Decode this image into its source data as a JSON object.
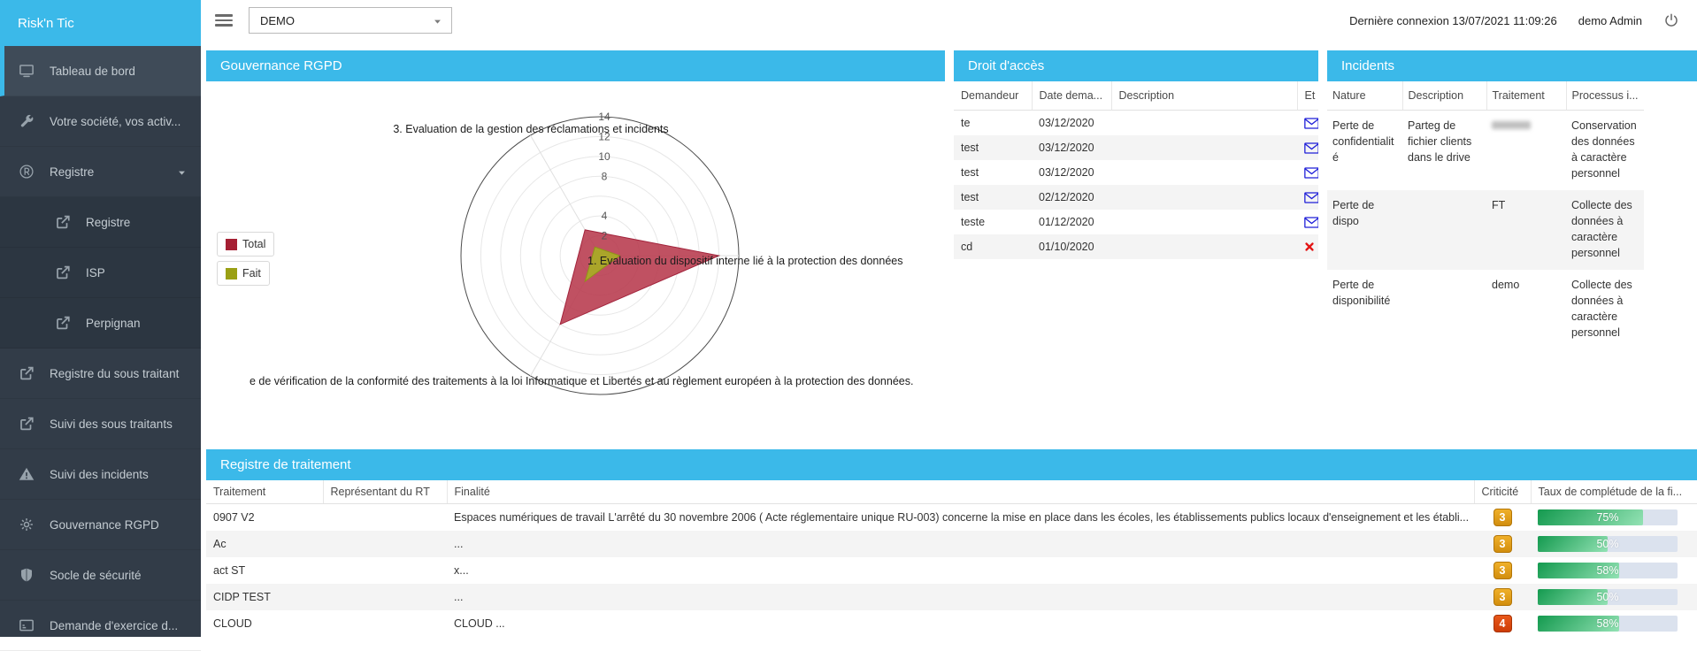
{
  "app": {
    "brand": "Risk'n Tic"
  },
  "topbar": {
    "org_select_value": "DEMO",
    "last_login": "Dernière connexion 13/07/2021 11:09:26",
    "user": "demo Admin"
  },
  "sidebar": {
    "items": [
      {
        "label": "Tableau de bord",
        "icon": "monitor",
        "active": true
      },
      {
        "label": "Votre société, vos activ...",
        "icon": "wrench"
      },
      {
        "label": "Registre",
        "icon": "registered",
        "expandable": true
      },
      {
        "label": "Registre",
        "icon": "external-link",
        "submenu": true
      },
      {
        "label": "ISP",
        "icon": "external-link",
        "submenu": true
      },
      {
        "label": "Perpignan",
        "icon": "external-link",
        "submenu": true
      },
      {
        "label": "Registre du sous traitant",
        "icon": "external-link"
      },
      {
        "label": "Suivi des sous traitants",
        "icon": "external-link"
      },
      {
        "label": "Suivi des incidents",
        "icon": "warning"
      },
      {
        "label": "Gouvernance RGPD",
        "icon": "gear"
      },
      {
        "label": "Socle de sécurité",
        "icon": "shield"
      },
      {
        "label": "Demande d'exercice d...",
        "icon": "card"
      }
    ]
  },
  "panels": {
    "gouvernance": {
      "title": "Gouvernance RGPD"
    },
    "droit_acces": {
      "title": "Droit d'accès",
      "columns": [
        "Demandeur",
        "Date dema...",
        "Description",
        "Et"
      ],
      "rows": [
        {
          "demandeur": "te",
          "date": "03/12/2020",
          "description": "",
          "etat": "mail"
        },
        {
          "demandeur": "test",
          "date": "03/12/2020",
          "description": "",
          "etat": "mail"
        },
        {
          "demandeur": "test",
          "date": "03/12/2020",
          "description": "",
          "etat": "mail"
        },
        {
          "demandeur": "test",
          "date": "02/12/2020",
          "description": "",
          "etat": "mail"
        },
        {
          "demandeur": "teste",
          "date": "01/12/2020",
          "description": "",
          "etat": "mail"
        },
        {
          "demandeur": "cd",
          "date": "01/10/2020",
          "description": "",
          "etat": "rejected"
        }
      ]
    },
    "incidents": {
      "title": "Incidents",
      "columns": [
        "Nature",
        "Description",
        "Traitement",
        "Processus i..."
      ],
      "rows": [
        {
          "nature": "Perte de confidentialité",
          "description": "Parteg de fichier clients dans le drive",
          "traitement": "",
          "traitement_redacted": true,
          "processus": "Conservation des données à caractère personnel"
        },
        {
          "nature": "Perte de dispo",
          "description": "",
          "traitement": "FT",
          "processus": "Collecte des données à caractère personnel"
        },
        {
          "nature": "Perte de disponibilité",
          "description": "",
          "traitement": "demo",
          "processus": "Collecte des données à caractère personnel"
        }
      ]
    },
    "registre": {
      "title": "Registre de traitement",
      "columns": [
        "Traitement",
        "Représentant du RT",
        "Finalité",
        "Criticité",
        "Taux de complétude de la fi..."
      ],
      "rows": [
        {
          "traitement": "0907 V2",
          "representant": "",
          "finalite": "Espaces numériques de travail L'arrêté du 30 novembre 2006 ( Acte réglementaire unique RU-003) concerne la mise en place dans les écoles, les établissements publics locaux d'enseignement et les établi...",
          "criticite": "3",
          "taux": 75
        },
        {
          "traitement": "Ac",
          "representant": "",
          "finalite": "...",
          "criticite": "3",
          "taux": 50
        },
        {
          "traitement": "act ST",
          "representant": "",
          "finalite": "x...",
          "criticite": "3",
          "taux": 58
        },
        {
          "traitement": "CIDP TEST",
          "representant": "",
          "finalite": "...",
          "criticite": "3",
          "taux": 50
        },
        {
          "traitement": "CLOUD",
          "representant": "",
          "finalite": "CLOUD ...",
          "criticite": "4",
          "taux": 58
        }
      ]
    }
  },
  "chart_data": {
    "type": "radar",
    "max": 14,
    "rings": [
      2,
      4,
      6,
      8,
      10,
      12,
      14
    ],
    "tick_labels": [
      2,
      4,
      8,
      10,
      12,
      14
    ],
    "indicators": [
      {
        "label": "1. Evaluation du dispositif interne lié à la protection des données",
        "angle_deg": 0,
        "max": 14
      },
      {
        "label": "e de vérification de la conformité des traitements à la loi Informatique et Libertés et au règlement européen à la protection des données.",
        "angle_deg": 240,
        "max": 14
      },
      {
        "label": "3. Evaluation de la gestion des réclamations et incidents",
        "angle_deg": 120,
        "max": 14
      }
    ],
    "series": [
      {
        "name": "Total",
        "values": [
          12,
          8,
          3
        ],
        "color": "#a2243c",
        "fill": "rgba(183,57,76,0.88)",
        "legend_color": "#a51f33"
      },
      {
        "name": "Fait",
        "values": [
          2,
          3,
          1
        ],
        "color": "#8f9416",
        "fill": "rgba(168,173,37,0.92)",
        "legend_color": "#9aa014"
      }
    ],
    "legend_position": "left",
    "grid": true
  },
  "colors": {
    "accent": "#3bb9e9",
    "sidebar_bg": "#323c48",
    "crit_orange": "#d28e0e",
    "crit_red": "#ce3c06",
    "progress_green": "#149a4f",
    "mail_blue": "#1d1dd8",
    "reject_red": "#e31414"
  }
}
